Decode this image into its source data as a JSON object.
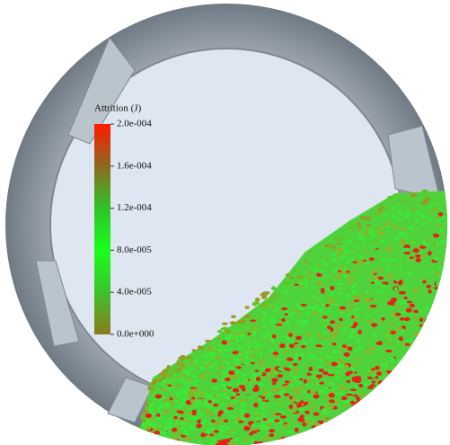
{
  "legend": {
    "title": "Attrition (J)",
    "range": [
      0,
      0.0002
    ],
    "ticks": [
      {
        "value": 0.0002,
        "label": "2.0e-004"
      },
      {
        "value": 0.00016,
        "label": "1.6e-004"
      },
      {
        "value": 0.00012,
        "label": "1.2e-004"
      },
      {
        "value": 8e-05,
        "label": "8.0e-005"
      },
      {
        "value": 4e-05,
        "label": "4.0e-005"
      },
      {
        "value": 0,
        "label": "0.0e+000"
      }
    ]
  }
}
